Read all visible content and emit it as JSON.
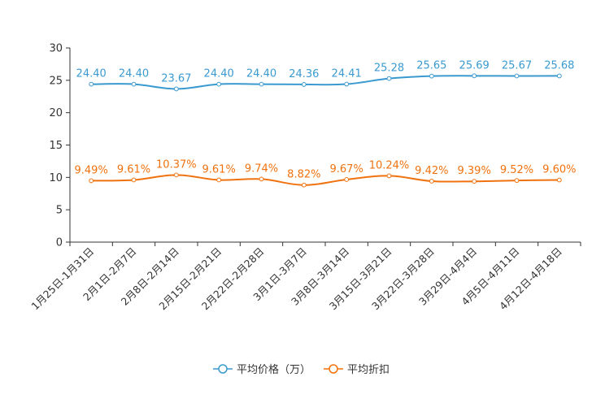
{
  "chart_data": {
    "type": "line",
    "categories": [
      "1月25日-1月31日",
      "2月1日-2月7日",
      "2月8日-2月14日",
      "2月15日-2月21日",
      "2月22日-2月28日",
      "3月1日-3月7日",
      "3月8日-3月14日",
      "3月15日-3月21日",
      "3月22日-3月28日",
      "3月29日-4月4日",
      "4月5日-4月11日",
      "4月12日-4月18日"
    ],
    "ylim": [
      0,
      30
    ],
    "yticks": [
      0,
      5,
      10,
      15,
      20,
      25,
      30
    ],
    "series": [
      {
        "name": "平均价格（万）",
        "color": "#3a9ad0",
        "values": [
          24.4,
          24.4,
          23.67,
          24.4,
          24.4,
          24.36,
          24.41,
          25.28,
          25.65,
          25.69,
          25.67,
          25.68
        ],
        "labels": [
          "24.40",
          "24.40",
          "23.67",
          "24.40",
          "24.40",
          "24.36",
          "24.41",
          "25.28",
          "25.65",
          "25.69",
          "25.67",
          "25.68"
        ]
      },
      {
        "name": "平均折扣",
        "color": "#f0720f",
        "values": [
          9.49,
          9.61,
          10.37,
          9.61,
          9.74,
          8.82,
          9.67,
          10.24,
          9.42,
          9.39,
          9.52,
          9.6
        ],
        "labels": [
          "9.49%",
          "9.61%",
          "10.37%",
          "9.61%",
          "9.74%",
          "8.82%",
          "9.67%",
          "10.24%",
          "9.42%",
          "9.39%",
          "9.52%",
          "9.60%"
        ]
      }
    ]
  }
}
